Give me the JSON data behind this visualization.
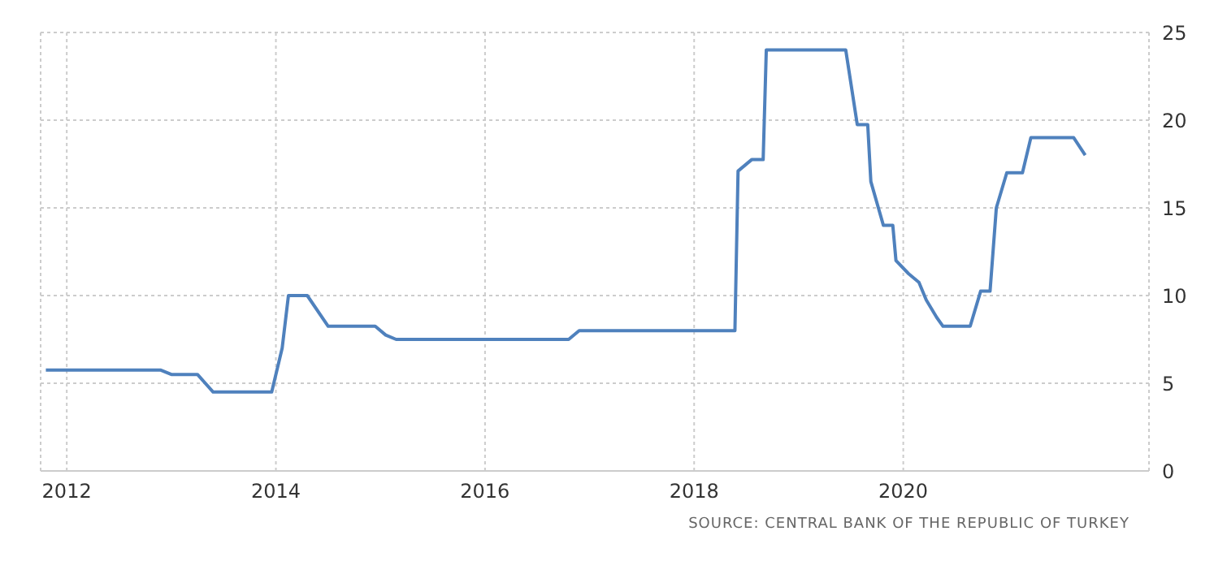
{
  "chart_data": {
    "type": "line",
    "annotations": [
      "SOURCE: CENTRAL BANK OF THE REPUBLIC OF TURKEY"
    ],
    "x": [
      2011.8,
      2012.9,
      2013.0,
      2013.25,
      2013.4,
      2013.96,
      2014.06,
      2014.12,
      2014.3,
      2014.5,
      2014.95,
      2015.05,
      2015.15,
      2016.8,
      2016.9,
      2018.39,
      2018.42,
      2018.55,
      2018.66,
      2018.69,
      2019.45,
      2019.56,
      2019.66,
      2019.69,
      2019.81,
      2019.9,
      2019.93,
      2020.05,
      2020.15,
      2020.22,
      2020.32,
      2020.38,
      2020.64,
      2020.74,
      2020.83,
      2020.89,
      2020.99,
      2021.14,
      2021.22,
      2021.63,
      2021.74
    ],
    "series": [
      {
        "color": "#4f81bd",
        "values": [
          5.75,
          5.75,
          5.5,
          5.5,
          4.5,
          4.5,
          7,
          10,
          10,
          8.25,
          8.25,
          7.75,
          7.5,
          7.5,
          8,
          8,
          17.1,
          17.75,
          17.75,
          24,
          24,
          19.75,
          19.75,
          16.5,
          14,
          14,
          12,
          11.25,
          10.75,
          9.75,
          8.75,
          8.25,
          8.25,
          10.25,
          10.25,
          15,
          17,
          17,
          19,
          19,
          18
        ]
      }
    ],
    "xlim": [
      2011.75,
      2022.35
    ],
    "xticks": [
      2012,
      2014,
      2016,
      2018,
      2020
    ],
    "ylim": [
      0,
      25
    ],
    "yticks": [
      0,
      5,
      10,
      15,
      20,
      25
    ],
    "grid": true,
    "legend": false,
    "marker": "none",
    "line_style": "solid"
  }
}
